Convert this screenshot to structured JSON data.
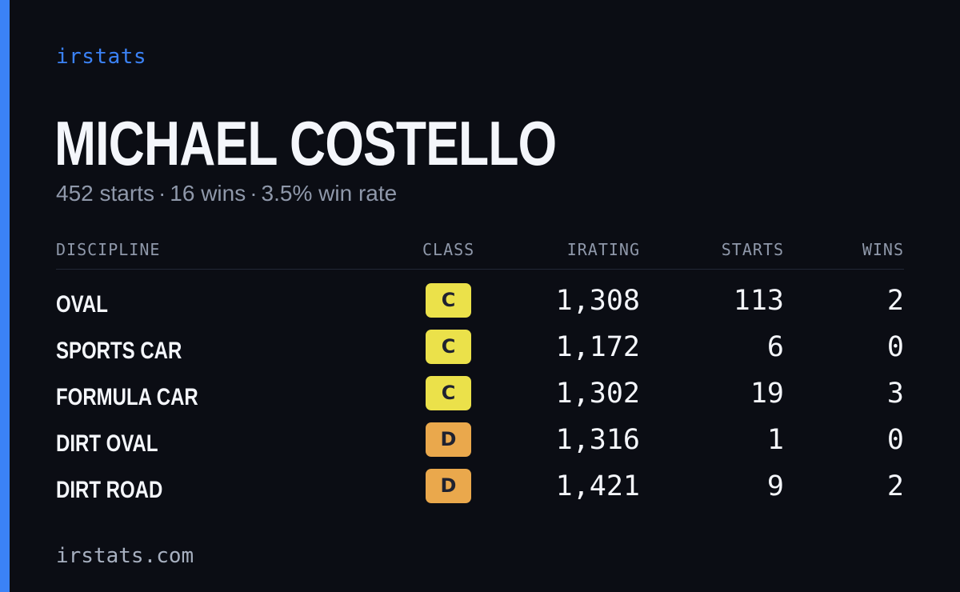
{
  "brand": "irstats",
  "driver": {
    "name": "MICHAEL COSTELLO",
    "starts_text": "452 starts",
    "wins_text": "16 wins",
    "win_rate_text": "3.5% win rate",
    "separator": "·"
  },
  "colors": {
    "accent": "#3b82f6",
    "class_c": "#ebe14a",
    "class_d": "#eaa84c"
  },
  "table": {
    "headers": {
      "discipline": "DISCIPLINE",
      "class": "CLASS",
      "irating": "IRATING",
      "starts": "STARTS",
      "wins": "WINS"
    },
    "rows": [
      {
        "discipline": "OVAL",
        "class": "C",
        "irating": "1,308",
        "starts": "113",
        "wins": "2"
      },
      {
        "discipline": "SPORTS CAR",
        "class": "C",
        "irating": "1,172",
        "starts": "6",
        "wins": "0"
      },
      {
        "discipline": "FORMULA CAR",
        "class": "C",
        "irating": "1,302",
        "starts": "19",
        "wins": "3"
      },
      {
        "discipline": "DIRT OVAL",
        "class": "D",
        "irating": "1,316",
        "starts": "1",
        "wins": "0"
      },
      {
        "discipline": "DIRT ROAD",
        "class": "D",
        "irating": "1,421",
        "starts": "9",
        "wins": "2"
      }
    ]
  },
  "footer": "irstats.com"
}
